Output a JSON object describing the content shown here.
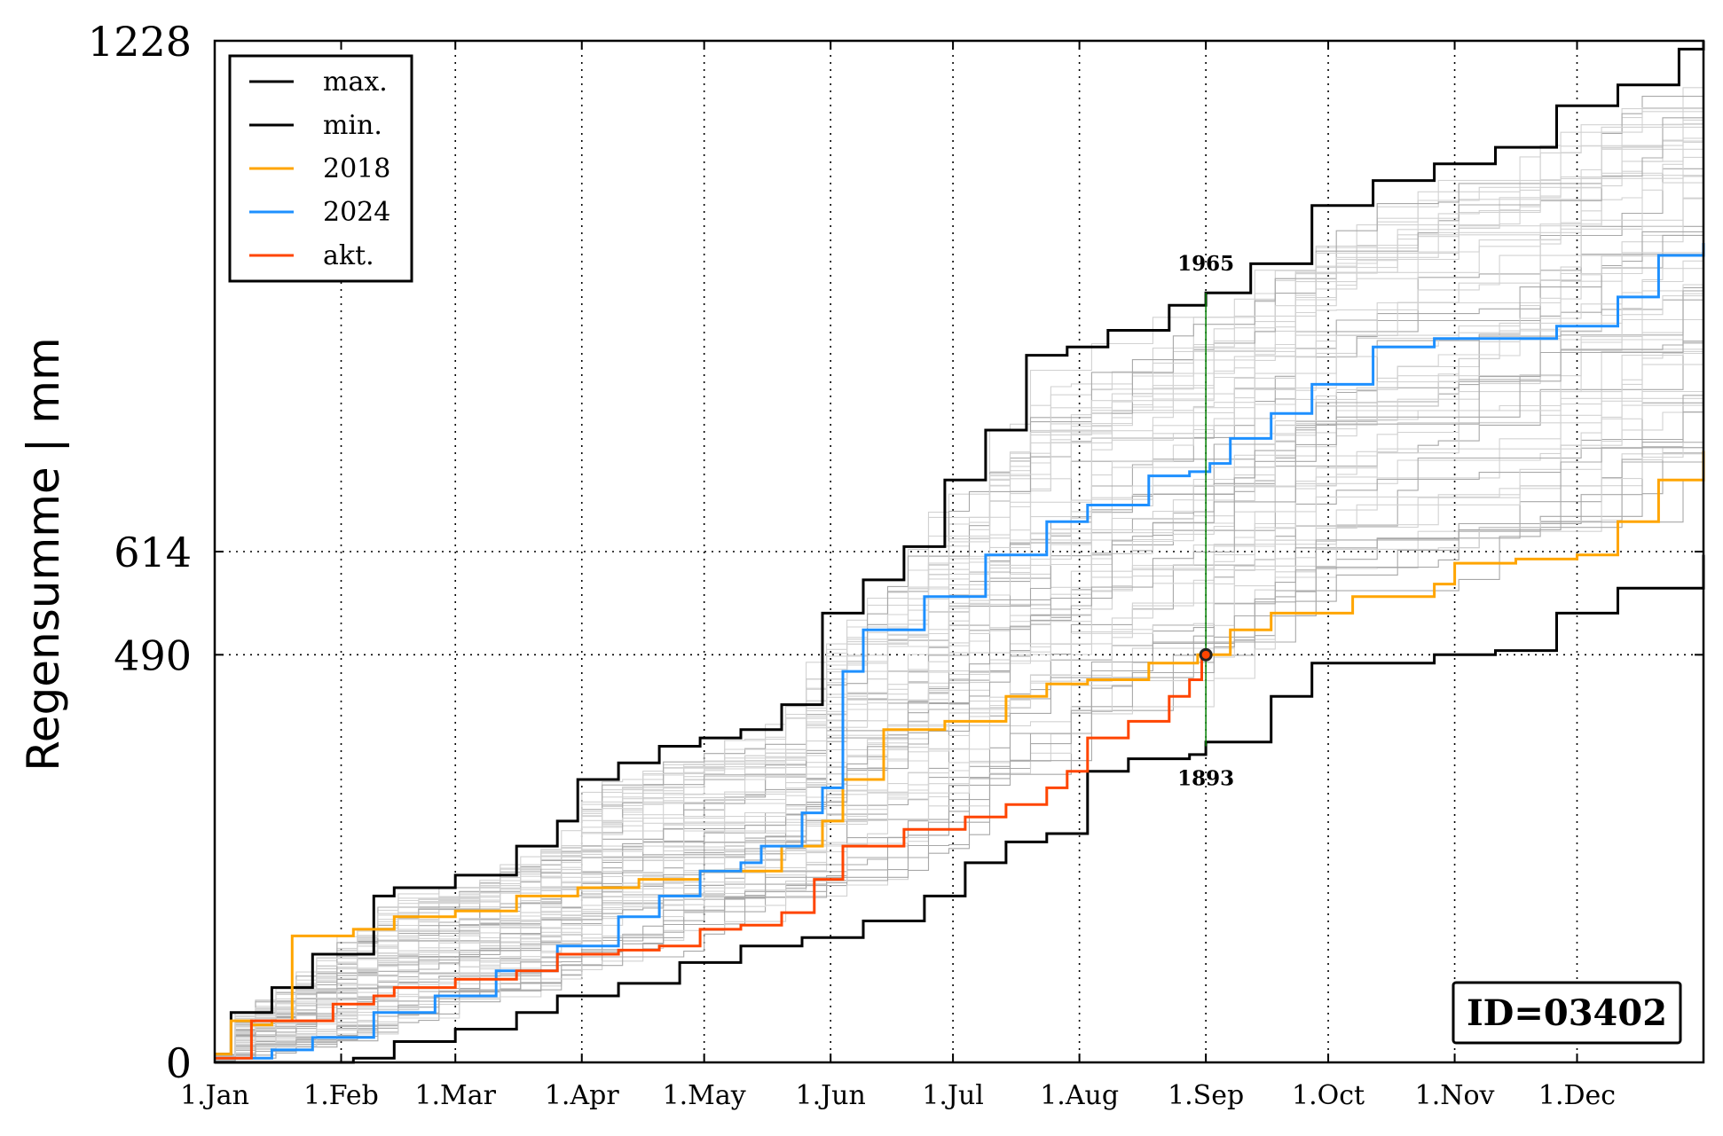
{
  "chart_data": {
    "type": "line",
    "title": "",
    "xlabel": "",
    "ylabel": "Regensumme | mm",
    "x_range_days": [
      1,
      366
    ],
    "ylim": [
      0,
      1228
    ],
    "x_ticks": [
      {
        "label": "1.Jan",
        "day": 1
      },
      {
        "label": "1.Feb",
        "day": 32
      },
      {
        "label": "1.Mar",
        "day": 60
      },
      {
        "label": "1.Apr",
        "day": 91
      },
      {
        "label": "1.May",
        "day": 121
      },
      {
        "label": "1.Jun",
        "day": 152
      },
      {
        "label": "1.Jul",
        "day": 182
      },
      {
        "label": "1.Aug",
        "day": 213
      },
      {
        "label": "1.Sep",
        "day": 244
      },
      {
        "label": "1.Oct",
        "day": 274
      },
      {
        "label": "1.Nov",
        "day": 305
      },
      {
        "label": "1.Dec",
        "day": 335
      }
    ],
    "y_ticks": [
      0,
      490,
      614,
      1228
    ],
    "grid": "dotted",
    "legend_position": "upper-left",
    "series": [
      {
        "name": "max.",
        "color": "#000000",
        "points": [
          [
            1,
            10
          ],
          [
            5,
            60
          ],
          [
            15,
            90
          ],
          [
            25,
            130
          ],
          [
            40,
            200
          ],
          [
            45,
            210
          ],
          [
            60,
            225
          ],
          [
            75,
            260
          ],
          [
            85,
            290
          ],
          [
            90,
            340
          ],
          [
            100,
            360
          ],
          [
            110,
            380
          ],
          [
            120,
            390
          ],
          [
            130,
            400
          ],
          [
            140,
            430
          ],
          [
            150,
            540
          ],
          [
            160,
            580
          ],
          [
            170,
            620
          ],
          [
            180,
            700
          ],
          [
            190,
            760
          ],
          [
            200,
            850
          ],
          [
            210,
            860
          ],
          [
            220,
            880
          ],
          [
            235,
            910
          ],
          [
            244,
            925
          ],
          [
            255,
            960
          ],
          [
            270,
            1030
          ],
          [
            285,
            1060
          ],
          [
            300,
            1080
          ],
          [
            315,
            1100
          ],
          [
            330,
            1150
          ],
          [
            345,
            1175
          ],
          [
            360,
            1218
          ],
          [
            366,
            1228
          ]
        ]
      },
      {
        "name": "min.",
        "color": "#000000",
        "points": [
          [
            1,
            0
          ],
          [
            35,
            5
          ],
          [
            45,
            25
          ],
          [
            60,
            40
          ],
          [
            75,
            60
          ],
          [
            85,
            80
          ],
          [
            100,
            95
          ],
          [
            115,
            120
          ],
          [
            130,
            140
          ],
          [
            145,
            150
          ],
          [
            160,
            170
          ],
          [
            175,
            200
          ],
          [
            185,
            240
          ],
          [
            195,
            265
          ],
          [
            205,
            275
          ],
          [
            215,
            350
          ],
          [
            225,
            365
          ],
          [
            240,
            370
          ],
          [
            244,
            385
          ],
          [
            260,
            440
          ],
          [
            270,
            480
          ],
          [
            275,
            480
          ],
          [
            300,
            490
          ],
          [
            315,
            495
          ],
          [
            330,
            540
          ],
          [
            345,
            570
          ],
          [
            366,
            610
          ]
        ]
      },
      {
        "name": "2018",
        "color": "#ffa500",
        "points": [
          [
            1,
            10
          ],
          [
            5,
            50
          ],
          [
            10,
            45
          ],
          [
            15,
            50
          ],
          [
            20,
            152
          ],
          [
            35,
            160
          ],
          [
            45,
            175
          ],
          [
            60,
            182
          ],
          [
            75,
            200
          ],
          [
            90,
            210
          ],
          [
            105,
            220
          ],
          [
            120,
            230
          ],
          [
            128,
            230
          ],
          [
            140,
            260
          ],
          [
            150,
            290
          ],
          [
            155,
            340
          ],
          [
            165,
            400
          ],
          [
            180,
            410
          ],
          [
            195,
            440
          ],
          [
            205,
            455
          ],
          [
            215,
            460
          ],
          [
            230,
            480
          ],
          [
            242,
            490
          ],
          [
            250,
            520
          ],
          [
            260,
            540
          ],
          [
            280,
            560
          ],
          [
            300,
            575
          ],
          [
            305,
            600
          ],
          [
            320,
            605
          ],
          [
            335,
            610
          ],
          [
            345,
            650
          ],
          [
            355,
            700
          ],
          [
            366,
            735
          ]
        ]
      },
      {
        "name": "2024",
        "color": "#1e90ff",
        "points": [
          [
            1,
            5
          ],
          [
            15,
            15
          ],
          [
            25,
            30
          ],
          [
            40,
            60
          ],
          [
            55,
            80
          ],
          [
            70,
            110
          ],
          [
            85,
            140
          ],
          [
            100,
            175
          ],
          [
            110,
            200
          ],
          [
            120,
            230
          ],
          [
            130,
            240
          ],
          [
            135,
            260
          ],
          [
            145,
            300
          ],
          [
            150,
            330
          ],
          [
            155,
            470
          ],
          [
            160,
            520
          ],
          [
            175,
            560
          ],
          [
            190,
            610
          ],
          [
            205,
            650
          ],
          [
            215,
            670
          ],
          [
            230,
            705
          ],
          [
            240,
            710
          ],
          [
            245,
            720
          ],
          [
            250,
            750
          ],
          [
            260,
            780
          ],
          [
            270,
            815
          ],
          [
            285,
            860
          ],
          [
            300,
            870
          ],
          [
            330,
            885
          ],
          [
            345,
            920
          ],
          [
            355,
            970
          ],
          [
            366,
            985
          ]
        ]
      },
      {
        "name": "akt.",
        "color": "#ff4500",
        "points": [
          [
            1,
            5
          ],
          [
            10,
            50
          ],
          [
            20,
            50
          ],
          [
            30,
            70
          ],
          [
            40,
            80
          ],
          [
            45,
            90
          ],
          [
            60,
            100
          ],
          [
            75,
            110
          ],
          [
            85,
            130
          ],
          [
            100,
            135
          ],
          [
            110,
            140
          ],
          [
            120,
            160
          ],
          [
            130,
            165
          ],
          [
            140,
            180
          ],
          [
            148,
            220
          ],
          [
            155,
            260
          ],
          [
            170,
            280
          ],
          [
            185,
            295
          ],
          [
            195,
            310
          ],
          [
            205,
            330
          ],
          [
            210,
            350
          ],
          [
            215,
            390
          ],
          [
            225,
            410
          ],
          [
            235,
            440
          ],
          [
            240,
            460
          ],
          [
            243,
            490
          ]
        ]
      }
    ],
    "marker": {
      "day": 244,
      "value": 490
    },
    "vertical_line": {
      "day": 244,
      "top": 925,
      "bottom": 380,
      "color": "#008000"
    },
    "annotations": [
      {
        "text": "1965",
        "position": "above-max"
      },
      {
        "text": "1893",
        "position": "below-min"
      }
    ],
    "id_box": "ID=03402"
  }
}
